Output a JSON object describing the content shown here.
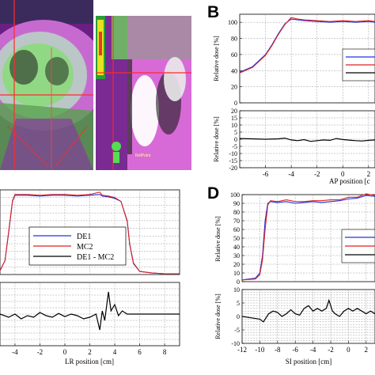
{
  "panels": {
    "B": {
      "letter": "B"
    },
    "D": {
      "letter": "D"
    }
  },
  "ct_images": {
    "left": {
      "content": "axial-ct-dose-overlay"
    },
    "right": {
      "content": "sagittal-ct-dose-overlay",
      "marker_text": "RefPoint"
    }
  },
  "colors": {
    "de1": "#2233dd",
    "mc2": "#dd2222",
    "diff": "#000000",
    "grid": "#9a9a9a",
    "ct_purple": "#8a2fa6",
    "ct_magenta": "#d86ad8",
    "ct_green": "#6fdc5a"
  },
  "chart_data": [
    {
      "id": "B-top",
      "type": "line",
      "ylabel": "Relative dose [%]",
      "xlim": [
        -8,
        2.5
      ],
      "ylim": [
        0,
        110
      ],
      "yticks": [
        0,
        20,
        40,
        60,
        80,
        100
      ],
      "grid": true,
      "legend_placement": "right",
      "series": [
        {
          "key": "de1",
          "x": [
            -8,
            -7,
            -6,
            -5.5,
            -5,
            -4.5,
            -4,
            -3.5,
            -3,
            -2,
            -1,
            0,
            1,
            2,
            2.5
          ],
          "values": [
            38,
            45,
            60,
            72,
            86,
            98,
            104,
            103,
            102,
            101,
            100,
            101,
            100,
            101,
            100
          ]
        },
        {
          "key": "mc2",
          "x": [
            -8,
            -7,
            -6,
            -5.5,
            -5,
            -4.5,
            -4,
            -3.5,
            -3,
            -2,
            -1,
            0,
            1,
            2,
            2.5
          ],
          "values": [
            37,
            44,
            59,
            71,
            85,
            97,
            106,
            104,
            103,
            102,
            101,
            102,
            101,
            102,
            101
          ]
        }
      ]
    },
    {
      "id": "B-bottom",
      "type": "line",
      "ylabel": "Relative dose [%]",
      "xlabel": "AP position [c",
      "xlim": [
        -8,
        2.5
      ],
      "ylim": [
        -20,
        20
      ],
      "yticks": [
        -20,
        -15,
        -10,
        -5,
        0,
        5,
        10,
        15,
        20
      ],
      "xticks": [
        -6,
        -4,
        -2,
        0,
        2
      ],
      "grid": true,
      "series": [
        {
          "key": "diff",
          "x": [
            -8,
            -7,
            -6,
            -5,
            -4.5,
            -4,
            -3.5,
            -3,
            -2.5,
            -2,
            -1.5,
            -1,
            -0.5,
            0,
            0.5,
            1,
            1.5,
            2,
            2.5
          ],
          "values": [
            0.5,
            0.3,
            0,
            0.3,
            0.8,
            -0.5,
            -1,
            -0.3,
            -1.5,
            -1,
            -0.5,
            -0.8,
            0.5,
            -0.2,
            -0.6,
            -1,
            -1.2,
            -0.8,
            -0.5
          ]
        }
      ]
    },
    {
      "id": "C-top",
      "type": "line",
      "xlim": [
        -5.2,
        9.2
      ],
      "ylim": [
        0,
        110
      ],
      "grid": true,
      "legend_placement": "right",
      "legend": [
        "DE1",
        "MC2",
        "DE1 - MC2"
      ],
      "series": [
        {
          "key": "de1",
          "name": "DE1",
          "x": [
            -5.2,
            -4.8,
            -4.5,
            -4.2,
            -4,
            -3,
            -2,
            -1,
            0,
            1,
            2,
            2.8,
            3,
            3.5,
            4,
            4.5,
            5,
            5.2,
            5.5,
            6,
            7,
            8,
            9.2
          ],
          "values": [
            5,
            18,
            55,
            95,
            103,
            103,
            102,
            103,
            103,
            102,
            103,
            104,
            102,
            101,
            99,
            95,
            70,
            40,
            15,
            4,
            2,
            1,
            1
          ]
        },
        {
          "key": "mc2",
          "name": "MC2",
          "x": [
            -5.2,
            -4.8,
            -4.5,
            -4.2,
            -4,
            -3,
            -2,
            -1,
            0,
            1,
            2,
            2.8,
            3,
            3.5,
            4,
            4.5,
            5,
            5.2,
            5.5,
            6,
            7,
            8,
            9.2
          ],
          "values": [
            5,
            18,
            56,
            96,
            104,
            104,
            103,
            104,
            104,
            103,
            104,
            107,
            103,
            102,
            100,
            95,
            69,
            39,
            14,
            4,
            2,
            1,
            1
          ]
        }
      ]
    },
    {
      "id": "C-bottom",
      "type": "line",
      "xlabel": "LR position [cm]",
      "xlim": [
        -5.2,
        9.2
      ],
      "ylim": [
        -10,
        10
      ],
      "xticks": [
        -4,
        -2,
        0,
        2,
        4,
        6,
        8
      ],
      "grid": true,
      "series": [
        {
          "key": "diff",
          "x": [
            -5.2,
            -4.5,
            -4,
            -3.5,
            -3,
            -2.5,
            -2,
            -1.5,
            -1,
            -0.5,
            0,
            0.5,
            1,
            1.5,
            2,
            2.5,
            2.8,
            3,
            3.2,
            3.5,
            3.7,
            4,
            4.3,
            4.6,
            5,
            5.5,
            6,
            7,
            8,
            9.2
          ],
          "values": [
            0,
            -1,
            0,
            -1.5,
            -0.5,
            -1,
            0.5,
            -0.5,
            -1,
            0.2,
            -0.8,
            0,
            -0.5,
            -1.5,
            -1,
            0,
            -5,
            1,
            -2,
            7,
            1,
            3,
            -0.5,
            1,
            0,
            0,
            0,
            0,
            0,
            0
          ]
        }
      ]
    },
    {
      "id": "D-top",
      "type": "line",
      "ylabel": "Relative dose [%]",
      "xlim": [
        -12,
        3
      ],
      "ylim": [
        0,
        100
      ],
      "yticks": [
        0,
        10,
        20,
        30,
        40,
        50,
        60,
        70,
        80,
        90,
        100
      ],
      "grid": true,
      "legend_placement": "right",
      "series": [
        {
          "key": "de1",
          "x": [
            -12,
            -10.5,
            -10,
            -9.7,
            -9.4,
            -9.1,
            -8.8,
            -8,
            -7,
            -6,
            -5,
            -4,
            -3,
            -2,
            -1,
            0,
            1,
            2,
            3
          ],
          "values": [
            2,
            4,
            10,
            30,
            70,
            90,
            92,
            91,
            92,
            90,
            91,
            92,
            91,
            92,
            93,
            95,
            96,
            99,
            98
          ]
        },
        {
          "key": "mc2",
          "x": [
            -12,
            -10.5,
            -10,
            -9.7,
            -9.4,
            -9.1,
            -8.8,
            -8,
            -7,
            -6,
            -5,
            -4,
            -3,
            -2,
            -1,
            0,
            1,
            2,
            3
          ],
          "values": [
            2,
            3,
            8,
            25,
            60,
            88,
            93,
            92,
            94,
            92,
            92,
            93,
            93,
            94,
            94,
            97,
            97,
            101,
            99
          ]
        }
      ]
    },
    {
      "id": "D-bottom",
      "type": "line",
      "ylabel": "Relative dose [%]",
      "xlabel": "SI position [cm]",
      "xlim": [
        -12,
        3
      ],
      "ylim": [
        -10,
        10
      ],
      "yticks": [
        -10,
        -5,
        0,
        5,
        10
      ],
      "xticks": [
        -12,
        -10,
        -8,
        -6,
        -4,
        -2,
        0,
        2
      ],
      "grid": true,
      "series": [
        {
          "key": "diff",
          "x": [
            -12,
            -11,
            -10,
            -9.6,
            -9.2,
            -9,
            -8.5,
            -8,
            -7.5,
            -7,
            -6.5,
            -6,
            -5.5,
            -5,
            -4.5,
            -4,
            -3.5,
            -3,
            -2.5,
            -2.2,
            -2,
            -1.8,
            -1.5,
            -1,
            -0.5,
            0,
            0.5,
            1,
            1.5,
            2,
            2.5,
            3
          ],
          "values": [
            0,
            -0.5,
            -1,
            -2,
            0,
            1,
            2,
            1.5,
            0,
            1,
            2.5,
            1,
            0.5,
            3,
            4,
            2,
            3,
            2,
            3,
            6,
            4,
            2,
            1,
            0,
            2,
            3,
            2,
            3,
            2,
            1,
            2,
            1
          ]
        }
      ]
    }
  ],
  "tick_text": {
    "B_top_y": [
      "0",
      "20",
      "40",
      "60",
      "80",
      "100"
    ],
    "B_bot_y": [
      "-20",
      "-15",
      "-10",
      "-5",
      "0",
      "5",
      "10",
      "15",
      "20"
    ],
    "B_bot_x": [
      "-6",
      "-4",
      "-2",
      "0",
      "2"
    ],
    "C_bot_x": [
      "-4",
      "-2",
      "0",
      "2",
      "4",
      "6",
      "8"
    ],
    "D_top_y": [
      "0",
      "10",
      "20",
      "30",
      "40",
      "50",
      "60",
      "70",
      "80",
      "90",
      "100"
    ],
    "D_bot_y": [
      "-10",
      "-5",
      "0",
      "5",
      "10"
    ],
    "D_bot_x": [
      "-12",
      "-10",
      "-8",
      "-6",
      "-4",
      "-2",
      "0",
      "2"
    ]
  }
}
